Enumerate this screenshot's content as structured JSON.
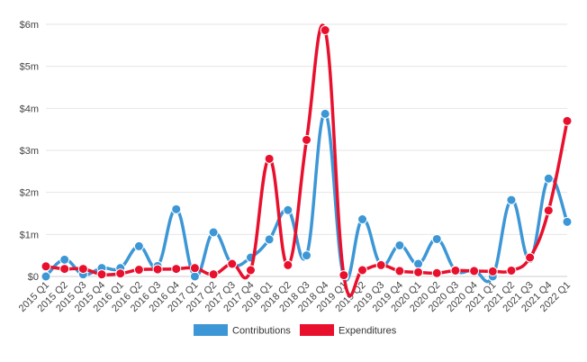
{
  "chart_data": {
    "type": "line",
    "categories": [
      "2015 Q1",
      "2015 Q2",
      "2015 Q3",
      "2015 Q4",
      "2016 Q1",
      "2016 Q2",
      "2016 Q3",
      "2016 Q4",
      "2017 Q1",
      "2017 Q2",
      "2017 Q3",
      "2017 Q4",
      "2018 Q1",
      "2018 Q2",
      "2018 Q3",
      "2018 Q4",
      "2019 Q1",
      "2019 Q2",
      "2019 Q3",
      "2019 Q4",
      "2020 Q1",
      "2020 Q2",
      "2020 Q3",
      "2020 Q4",
      "2021 Q1",
      "2021 Q2",
      "2021 Q3",
      "2021 Q4",
      "2022 Q1"
    ],
    "series": [
      {
        "name": "Contributions",
        "color": "#3d97d6",
        "values": [
          0,
          0.4,
          0.05,
          0.2,
          0.2,
          0.72,
          0.25,
          1.6,
          0,
          1.05,
          0.3,
          0.45,
          0.88,
          1.58,
          0.5,
          3.87,
          0,
          1.36,
          0.28,
          0.74,
          0.3,
          0.89,
          0.15,
          0.15,
          0,
          1.82,
          0.42,
          2.33,
          1.3
        ]
      },
      {
        "name": "Expenditures",
        "color": "#e8102d",
        "values": [
          0.24,
          0.18,
          0.18,
          0.05,
          0.07,
          0.16,
          0.17,
          0.18,
          0.2,
          0.05,
          0.3,
          0.15,
          2.8,
          0.27,
          3.25,
          5.86,
          0.03,
          0.15,
          0.27,
          0.13,
          0.1,
          0.08,
          0.14,
          0.13,
          0.12,
          0.14,
          0.45,
          1.57,
          3.7
        ]
      }
    ],
    "ylim": [
      0,
      6
    ],
    "yticks": [
      "$0",
      "$1m",
      "$2m",
      "$3m",
      "$4m",
      "$5m",
      "$6m"
    ],
    "ytick_values": [
      0,
      1,
      2,
      3,
      4,
      5,
      6
    ],
    "grid": true,
    "legend": "bottom"
  }
}
